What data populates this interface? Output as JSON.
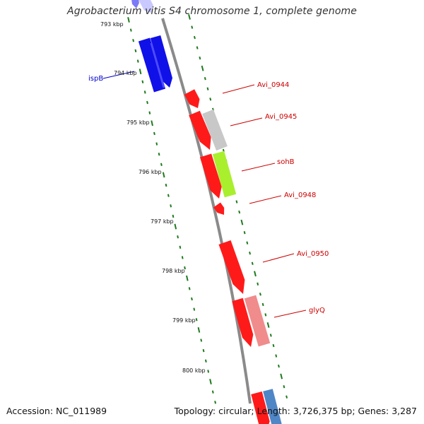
{
  "title": "Agrobacterium vitis S4 chromosome 1, complete genome",
  "footer": {
    "accession": "Accession: NC_011989",
    "summary": "Topology: circular; Length: 3,726,375 bp; Genes: 3,287"
  },
  "colors": {
    "backbone": "#8a8a8a",
    "ticks": "#1f7a1f",
    "tick_text": "#111111",
    "forward_gene": "#ff1a1a",
    "reverse_gene": "#1010e8",
    "forward_label": "#cc0000",
    "reverse_label": "#0000cc",
    "rna_gray": "#c8c8c8",
    "rna_green": "#a9ef2d",
    "pink": "#f08c8c",
    "steel_blue": "#4f86c6"
  },
  "ticks": [
    {
      "label": "793 kbp"
    },
    {
      "label": "794 kbp"
    },
    {
      "label": "795 kbp"
    },
    {
      "label": "796 kbp"
    },
    {
      "label": "797 kbp"
    },
    {
      "label": "798 kbp"
    },
    {
      "label": "799 kbp"
    },
    {
      "label": "800 kbp"
    }
  ],
  "gene_labels": [
    {
      "name": "ispB"
    },
    {
      "name": "Avi_0944"
    },
    {
      "name": "Avi_0945"
    },
    {
      "name": "sohB"
    },
    {
      "name": "Avi_0948"
    },
    {
      "name": "Avi_0950"
    },
    {
      "name": "glyQ"
    }
  ]
}
